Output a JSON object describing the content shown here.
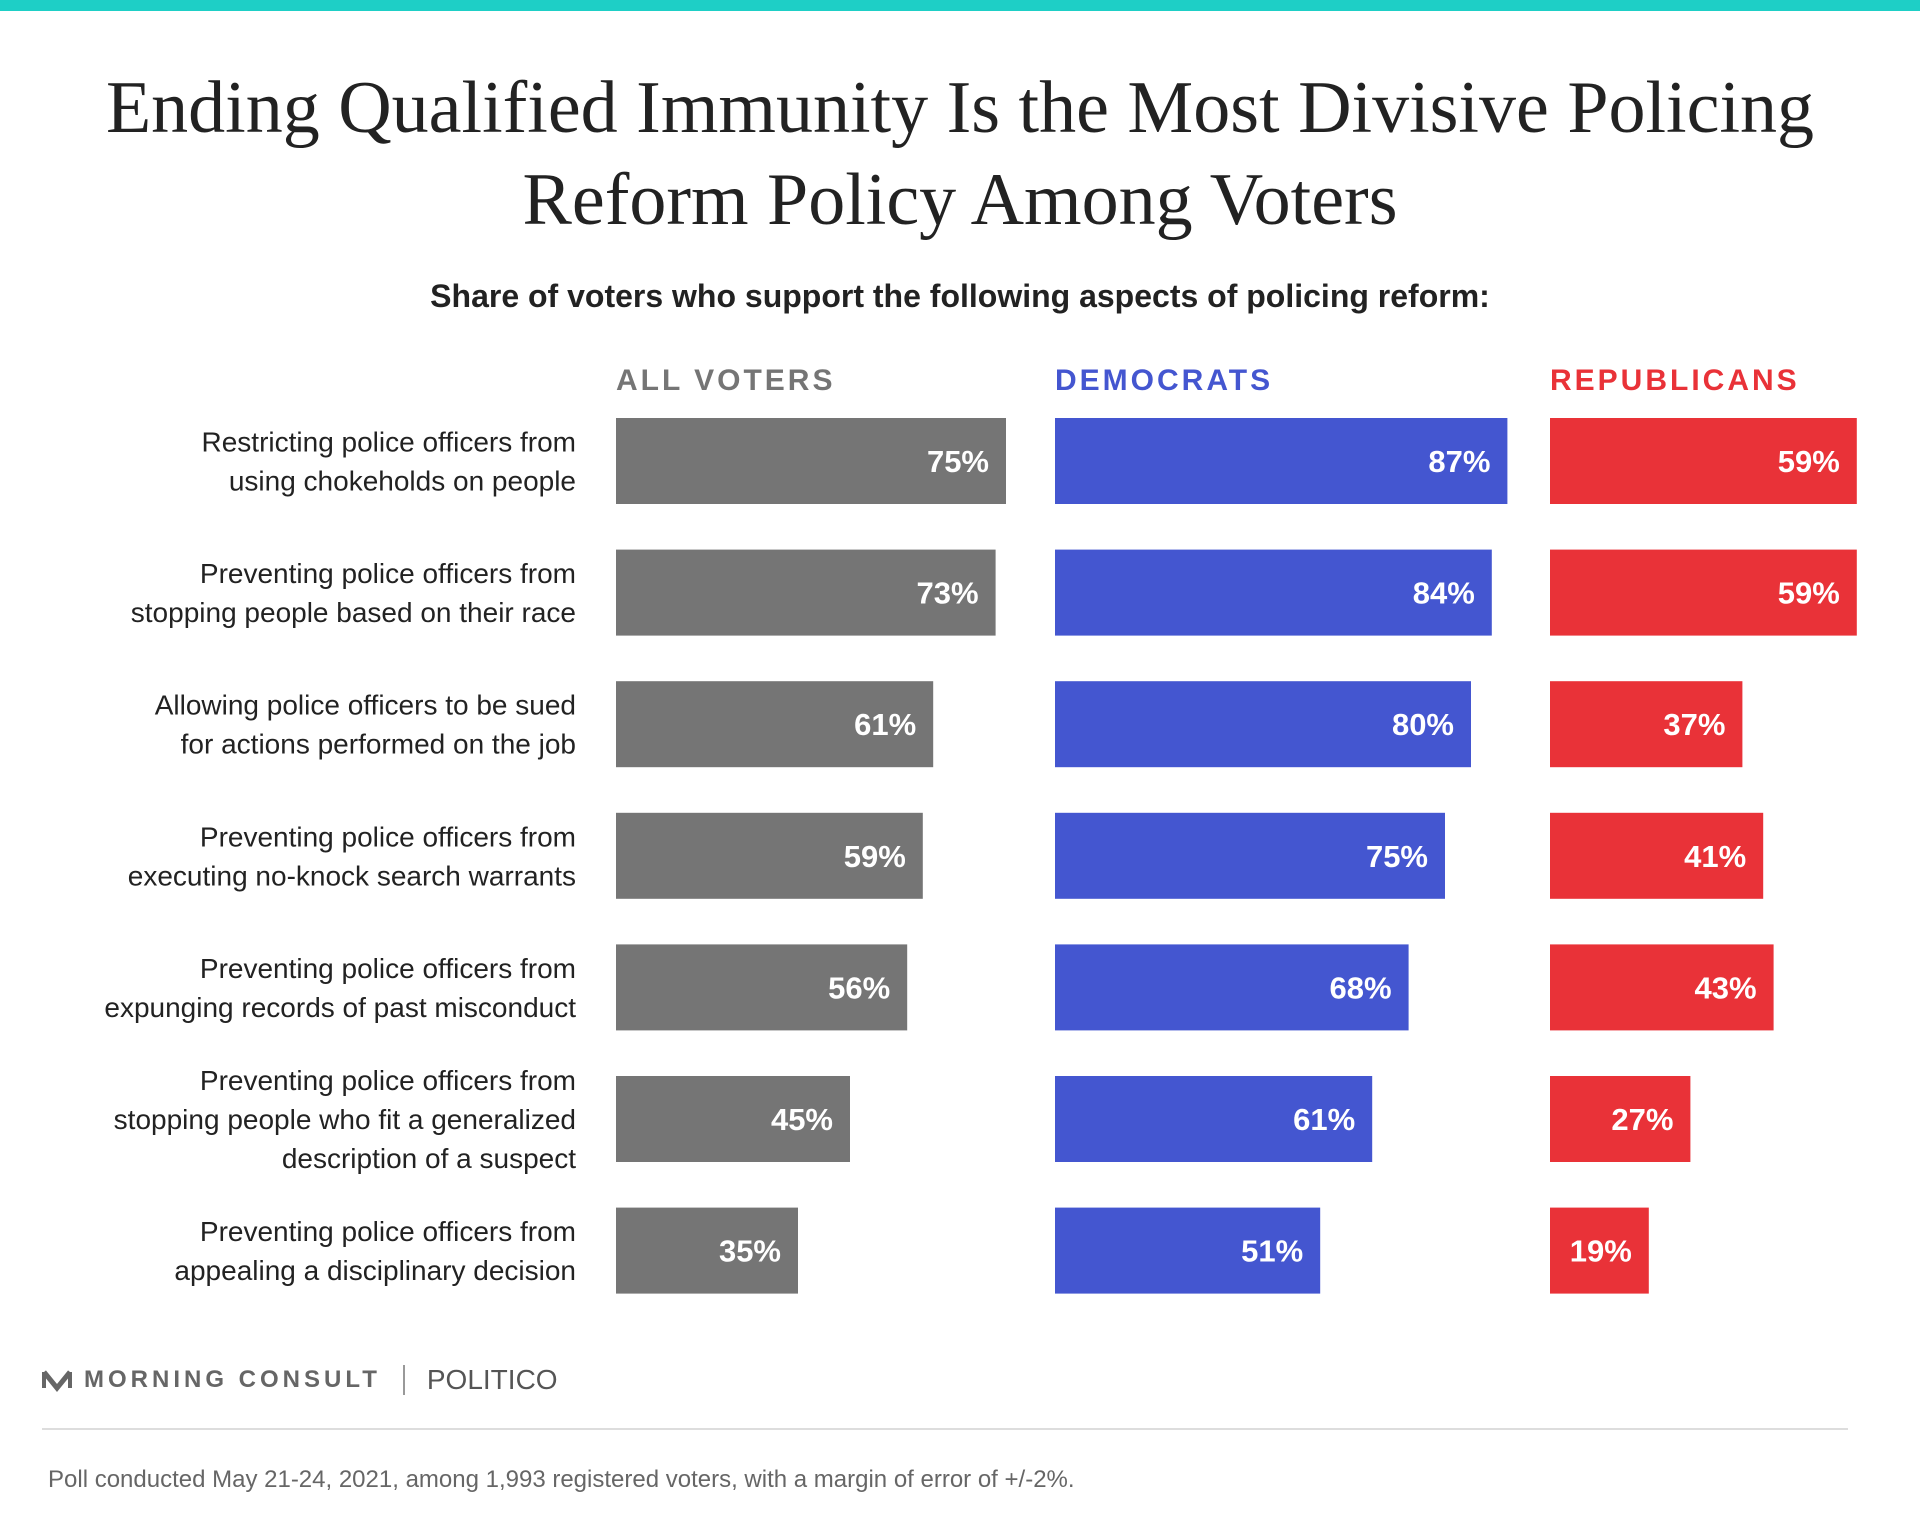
{
  "colors": {
    "top_bar": "#1ecfc6",
    "text": "#222222",
    "all_voters": "#757575",
    "democrats": "#4456d0",
    "republicans": "#e93238"
  },
  "chart_data": {
    "type": "bar",
    "orientation": "horizontal",
    "title": "Ending Qualified Immunity Is the Most Divisive Policing Reform Policy Among Voters",
    "subtitle": "Share of voters who support the following aspects of policing reform:",
    "categories": [
      [
        "Restricting police officers from",
        "using chokeholds on people"
      ],
      [
        "Preventing police officers from",
        "stopping people based on their race"
      ],
      [
        "Allowing police officers to be sued",
        "for actions performed on the job"
      ],
      [
        "Preventing police officers from",
        "executing no-knock search warrants"
      ],
      [
        "Preventing police officers from",
        "expunging records of past misconduct"
      ],
      [
        "Preventing police officers from",
        "stopping people who fit a generalized",
        "description of a suspect"
      ],
      [
        "Preventing police officers from",
        "appealing a disciplinary decision"
      ]
    ],
    "series": [
      {
        "name": "ALL VOTERS",
        "color": "#757575",
        "values": [
          75,
          73,
          61,
          59,
          56,
          45,
          35
        ]
      },
      {
        "name": "DEMOCRATS",
        "color": "#4456d0",
        "values": [
          87,
          84,
          80,
          75,
          68,
          61,
          51
        ]
      },
      {
        "name": "REPUBLICANS",
        "color": "#e93238",
        "values": [
          59,
          59,
          37,
          41,
          43,
          27,
          19
        ]
      }
    ],
    "value_suffix": "%",
    "xlim": [
      0,
      100
    ],
    "grid": false
  },
  "brand": {
    "morning_consult": "MORNING CONSULT",
    "politico": "POLITICO"
  },
  "footnote": "Poll conducted May 21-24, 2021, among 1,993 registered voters, with a margin of error of +/-2%."
}
